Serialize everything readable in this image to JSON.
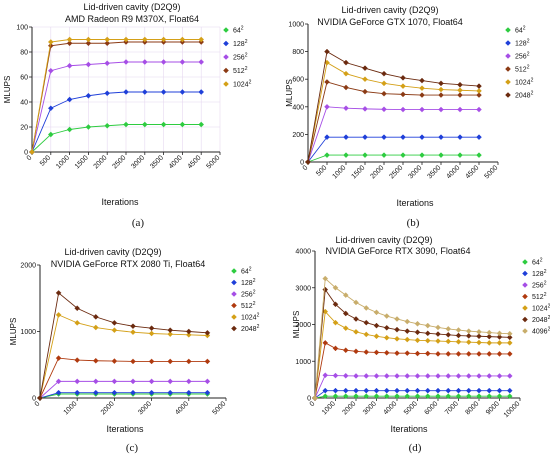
{
  "chart_data": [
    {
      "type": "line",
      "title": "Lid-driven cavity (D2Q9)",
      "subtitle": "AMD Radeon R9 M370X, Float64",
      "xlabel": "Iterations",
      "ylabel": "MLUPS",
      "caption": "(a)",
      "xlim": [
        0,
        5000
      ],
      "ylim": [
        0,
        100
      ],
      "xticks": [
        "0",
        "500",
        "1000",
        "1500",
        "2000",
        "2500",
        "3000",
        "3500",
        "4000",
        "4500",
        "5000"
      ],
      "yticks": [
        "0",
        "20",
        "40",
        "60",
        "80",
        "100"
      ],
      "grid": true,
      "legend_position": "top-right",
      "x": [
        0,
        500,
        1000,
        1500,
        2000,
        2500,
        3000,
        3500,
        4000,
        4500
      ],
      "series": [
        {
          "name": "64",
          "sup": "2",
          "color": "#2ecc40",
          "values": [
            0,
            14,
            18,
            20,
            21,
            22,
            22,
            22,
            22,
            22
          ]
        },
        {
          "name": "128",
          "sup": "2",
          "color": "#1f3fd9",
          "values": [
            0,
            35,
            42,
            45,
            47,
            48,
            48,
            48,
            48,
            48
          ]
        },
        {
          "name": "256",
          "sup": "2",
          "color": "#a64ee6",
          "values": [
            0,
            65,
            69,
            70,
            71,
            72,
            72,
            72,
            72,
            72
          ]
        },
        {
          "name": "512",
          "sup": "2",
          "color": "#8b3a14",
          "values": [
            0,
            85,
            87,
            87,
            87,
            88,
            88,
            88,
            88,
            88
          ]
        },
        {
          "name": "1024",
          "sup": "2",
          "color": "#d4a017",
          "values": [
            0,
            88,
            90,
            90,
            90,
            90,
            90,
            90,
            90,
            90
          ]
        }
      ]
    },
    {
      "type": "line",
      "title": "Lid-driven cavity (D2Q9)",
      "subtitle": "NVIDIA GeForce GTX 1070, Float64",
      "xlabel": "Iterations",
      "ylabel": "MLUPS",
      "caption": "(b)",
      "xlim": [
        0,
        5000
      ],
      "ylim": [
        0,
        1000
      ],
      "xticks": [
        "0",
        "500",
        "1000",
        "1500",
        "2000",
        "2500",
        "3000",
        "3500",
        "4000",
        "4500",
        "5000"
      ],
      "yticks": [
        "0",
        "200",
        "400",
        "600",
        "800",
        "1000"
      ],
      "grid": false,
      "legend_position": "top-right",
      "x": [
        0,
        500,
        1000,
        1500,
        2000,
        2500,
        3000,
        3500,
        4000,
        4500
      ],
      "series": [
        {
          "name": "64",
          "sup": "2",
          "color": "#2ecc40",
          "values": [
            0,
            50,
            50,
            50,
            50,
            50,
            50,
            50,
            50,
            50
          ]
        },
        {
          "name": "128",
          "sup": "2",
          "color": "#1f3fd9",
          "values": [
            0,
            180,
            180,
            180,
            180,
            180,
            180,
            180,
            180,
            180
          ]
        },
        {
          "name": "256",
          "sup": "2",
          "color": "#a64ee6",
          "values": [
            0,
            400,
            390,
            385,
            382,
            380,
            380,
            380,
            380,
            380
          ]
        },
        {
          "name": "512",
          "sup": "2",
          "color": "#8b3a14",
          "values": [
            0,
            580,
            540,
            510,
            495,
            490,
            485,
            485,
            485,
            485
          ]
        },
        {
          "name": "1024",
          "sup": "2",
          "color": "#d4a017",
          "values": [
            0,
            720,
            640,
            600,
            570,
            550,
            535,
            525,
            520,
            515
          ]
        },
        {
          "name": "2048",
          "sup": "2",
          "color": "#6b2a0f",
          "values": [
            0,
            800,
            720,
            680,
            640,
            610,
            590,
            570,
            560,
            550
          ]
        }
      ]
    },
    {
      "type": "line",
      "title": "Lid-driven cavity (D2Q9)",
      "subtitle": "NVIDIA GeForce RTX 2080 Ti, Float64",
      "xlabel": "Iterations",
      "ylabel": "MLUPS",
      "caption": "(c)",
      "xlim": [
        0,
        5000
      ],
      "ylim": [
        0,
        2000
      ],
      "xticks": [
        "0",
        "1000",
        "2000",
        "3000",
        "4000",
        "5000"
      ],
      "yticks": [
        "0",
        "1000",
        "2000"
      ],
      "grid": false,
      "legend_position": "top-right",
      "x": [
        0,
        500,
        1000,
        1500,
        2000,
        2500,
        3000,
        3500,
        4000,
        4500
      ],
      "series": [
        {
          "name": "64",
          "sup": "2",
          "color": "#2ecc40",
          "values": [
            0,
            60,
            60,
            60,
            60,
            60,
            60,
            60,
            60,
            60
          ]
        },
        {
          "name": "128",
          "sup": "2",
          "color": "#1f3fd9",
          "values": [
            0,
            80,
            80,
            80,
            80,
            80,
            80,
            80,
            80,
            80
          ]
        },
        {
          "name": "256",
          "sup": "2",
          "color": "#a64ee6",
          "values": [
            0,
            250,
            250,
            250,
            250,
            250,
            250,
            250,
            250,
            250
          ]
        },
        {
          "name": "512",
          "sup": "2",
          "color": "#b03a0f",
          "values": [
            0,
            600,
            570,
            560,
            555,
            550,
            550,
            550,
            550,
            550
          ]
        },
        {
          "name": "1024",
          "sup": "2",
          "color": "#d4a017",
          "values": [
            0,
            1250,
            1130,
            1060,
            1020,
            990,
            970,
            960,
            950,
            940
          ]
        },
        {
          "name": "2048",
          "sup": "2",
          "color": "#6b2a0f",
          "values": [
            0,
            1580,
            1350,
            1220,
            1130,
            1080,
            1050,
            1020,
            1000,
            980
          ]
        }
      ]
    },
    {
      "type": "line",
      "title": "Lid-driven cavity (D2Q9)",
      "subtitle": "NVIDIA GeForce RTX 3090, Float64",
      "xlabel": "Iterations",
      "ylabel": "MLUPS",
      "caption": "(d)",
      "xlim": [
        0,
        10000
      ],
      "ylim": [
        0,
        4000
      ],
      "xticks": [
        "0",
        "1000",
        "2000",
        "3000",
        "4000",
        "5000",
        "6000",
        "7000",
        "8000",
        "9000",
        "10000"
      ],
      "yticks": [
        "0",
        "1000",
        "2000",
        "3000",
        "4000"
      ],
      "grid": false,
      "legend_position": "top-right",
      "x": [
        0,
        500,
        1000,
        1500,
        2000,
        2500,
        3000,
        3500,
        4000,
        4500,
        5000,
        5500,
        6000,
        6500,
        7000,
        7500,
        8000,
        8500,
        9000,
        9500
      ],
      "series": [
        {
          "name": "64",
          "sup": "2",
          "color": "#2ecc40",
          "values": [
            0,
            50,
            50,
            50,
            50,
            50,
            50,
            50,
            50,
            50,
            50,
            50,
            50,
            50,
            50,
            50,
            50,
            50,
            50,
            50
          ]
        },
        {
          "name": "128",
          "sup": "2",
          "color": "#1f3fd9",
          "values": [
            0,
            200,
            200,
            200,
            200,
            200,
            200,
            200,
            200,
            200,
            200,
            200,
            200,
            200,
            200,
            200,
            200,
            200,
            200,
            200
          ]
        },
        {
          "name": "256",
          "sup": "2",
          "color": "#a64ee6",
          "values": [
            0,
            620,
            610,
            605,
            600,
            600,
            600,
            600,
            600,
            600,
            600,
            600,
            600,
            600,
            600,
            600,
            600,
            600,
            600,
            600
          ]
        },
        {
          "name": "512",
          "sup": "2",
          "color": "#b03a0f",
          "values": [
            0,
            1500,
            1350,
            1300,
            1270,
            1250,
            1240,
            1230,
            1220,
            1220,
            1210,
            1210,
            1200,
            1200,
            1200,
            1200,
            1200,
            1200,
            1200,
            1200
          ]
        },
        {
          "name": "1024",
          "sup": "2",
          "color": "#d4a017",
          "values": [
            0,
            2350,
            2050,
            1900,
            1800,
            1730,
            1680,
            1640,
            1610,
            1590,
            1570,
            1560,
            1550,
            1540,
            1530,
            1520,
            1510,
            1500,
            1500,
            1500
          ]
        },
        {
          "name": "2048",
          "sup": "2",
          "color": "#6b2a0f",
          "values": [
            0,
            2950,
            2550,
            2300,
            2150,
            2050,
            1970,
            1910,
            1860,
            1820,
            1790,
            1760,
            1740,
            1720,
            1700,
            1690,
            1680,
            1670,
            1660,
            1650
          ]
        },
        {
          "name": "4096",
          "sup": "2",
          "color": "#c8ad6b",
          "values": [
            0,
            3250,
            3000,
            2800,
            2600,
            2450,
            2330,
            2230,
            2150,
            2080,
            2020,
            1970,
            1920,
            1880,
            1850,
            1820,
            1800,
            1780,
            1760,
            1750
          ]
        }
      ]
    }
  ]
}
